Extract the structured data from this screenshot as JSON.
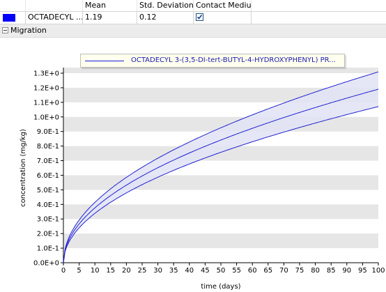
{
  "table": {
    "headers": [
      "",
      "",
      "Mean",
      "Std. Deviation",
      "Contact Medium"
    ],
    "row": {
      "color": "#0000ff",
      "name": "OCTADECYL ...",
      "mean": "1.19",
      "std": "0.12",
      "contact_medium_checked": true
    }
  },
  "section": {
    "label": "Migration"
  },
  "legend": {
    "text": "OCTADECYL 3-(3,5-DI-tert-BUTYL-4-HYDROXYPHENYL) PR..."
  },
  "chart_data": {
    "type": "line",
    "xlabel": "time (days)",
    "ylabel": "concentration (mg/kg)",
    "xlim": [
      0,
      100
    ],
    "ylim": [
      0,
      1.3
    ],
    "xticks": [
      "0",
      "5",
      "10",
      "15",
      "20",
      "25",
      "30",
      "35",
      "40",
      "45",
      "50",
      "55",
      "60",
      "65",
      "70",
      "75",
      "80",
      "85",
      "90",
      "95",
      "100"
    ],
    "yticks": [
      "0.0E+0",
      "1.0E-1",
      "2.0E-1",
      "3.0E-1",
      "4.0E-1",
      "5.0E-1",
      "6.0E-1",
      "7.0E-1",
      "8.0E-1",
      "9.0E-1",
      "1.0E+0",
      "1.1E+0",
      "1.2E+0",
      "1.3E+0"
    ],
    "grid": "horizontal alternating bands",
    "x": [
      0,
      1,
      2,
      5,
      10,
      20,
      30,
      40,
      50,
      60,
      70,
      80,
      90,
      100
    ],
    "series": [
      {
        "name": "OCTADECYL 3-(3,5-DI-tert-BUTYL-4-HYDROXYPHENYL) PR...",
        "values": [
          0,
          0.119,
          0.168,
          0.266,
          0.376,
          0.532,
          0.652,
          0.753,
          0.841,
          0.922,
          0.996,
          1.064,
          1.129,
          1.19
        ]
      },
      {
        "values": [
          0,
          0.131,
          0.185,
          0.293,
          0.414,
          0.585,
          0.717,
          0.828,
          0.925,
          1.014,
          1.095,
          1.171,
          1.242,
          1.309
        ]
      },
      {
        "values": [
          0,
          0.107,
          0.151,
          0.239,
          0.338,
          0.479,
          0.586,
          0.677,
          0.757,
          0.829,
          0.896,
          0.957,
          1.016,
          1.071
        ]
      }
    ],
    "colors": {
      "line": "#2020d0",
      "band": "#e0e3f5",
      "grid_band": "#e6e6e6"
    }
  }
}
